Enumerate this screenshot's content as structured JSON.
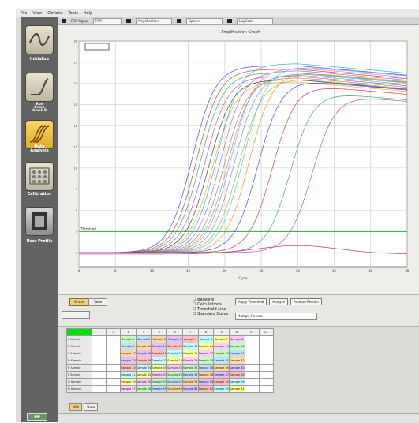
{
  "menu": [
    "File",
    "View",
    "Options",
    "Tools",
    "Help"
  ],
  "sidebar": {
    "items": [
      {
        "label": "Initialize"
      },
      {
        "label": "Run\nSetup\nGraph B"
      },
      {
        "label": "Data\nAnalysis"
      },
      {
        "label": "Calibration"
      },
      {
        "label": "User Profile"
      }
    ]
  },
  "topbar": {
    "fields": [
      "FCN Signal",
      "FAM",
      "Amplification",
      "Options",
      "Log Scale"
    ]
  },
  "plot": {
    "title": "Amplification Graph",
    "threshold_label": "Threshold"
  },
  "status": {
    "checkboxes": [
      "Baseline",
      "Calculations",
      "Threshold Line",
      "Standard Curve"
    ],
    "buttons": [
      "Apply Threshold",
      "Analyze",
      "Analyze Results"
    ],
    "tabs": [
      "Graph",
      "Table"
    ],
    "field": "Multiple Results"
  },
  "grid": {
    "headers": [
      "",
      "1",
      "2",
      "3",
      "4",
      "5",
      "6",
      "7",
      "8",
      "9",
      "10",
      "11",
      "12"
    ],
    "rows": [
      {
        "label": "A  Sample",
        "cells": [
          "",
          "",
          "Sample 1",
          "Sample 2",
          "Sample 3",
          "Sample 4",
          "Sample 5",
          "Sample 6",
          "Sample 7",
          "Sample 8",
          "",
          ""
        ]
      },
      {
        "label": "B  Sample",
        "cells": [
          "",
          "",
          "Sample 9",
          "Sample 10",
          "Sample 11",
          "Sample 12",
          "Sample 13",
          "Sample 14",
          "Sample 15",
          "Sample 16",
          "",
          ""
        ]
      },
      {
        "label": "C  Sample",
        "cells": [
          "",
          "",
          "Sample 17",
          "Sample 18",
          "Sample 19",
          "Sample 20",
          "Sample 21",
          "Sample 22",
          "Sample 23",
          "Sample 24",
          "",
          ""
        ]
      },
      {
        "label": "D  Sample",
        "cells": [
          "",
          "",
          "Sample 25",
          "Sample 26",
          "Sample 27",
          "Sample 28",
          "Sample 29",
          "Sample 30",
          "Sample 31",
          "Sample 32",
          "",
          ""
        ]
      },
      {
        "label": "E  Sample",
        "cells": [
          "",
          "",
          "Sample 33",
          "Sample 34",
          "Sample 35",
          "Sample 36",
          "Sample 37",
          "Sample 38",
          "Sample 39",
          "Sample 40",
          "",
          ""
        ]
      },
      {
        "label": "F  Sample",
        "cells": [
          "",
          "",
          "Sample 41",
          "Sample 42",
          "Sample 43",
          "Sample 44",
          "Sample 45",
          "Sample 46",
          "Sample 47",
          "Sample 48",
          "",
          ""
        ]
      },
      {
        "label": "G  Sample",
        "cells": [
          "",
          "",
          "Sample 49",
          "Sample 50",
          "Sample 51",
          "Sample 52",
          "Sample 53",
          "Sample 54",
          "Sample 55",
          "Sample 56",
          "",
          ""
        ]
      },
      {
        "label": "H  Sample",
        "cells": [
          "",
          "",
          "Sample 57",
          "Sample 58",
          "Sample 59",
          "Sample 60",
          "Sample 61",
          "Sample 62",
          "Sample 63",
          "Sample 64",
          "",
          ""
        ]
      }
    ],
    "bottom_tabs": [
      "Well",
      "Data"
    ]
  },
  "chart_data": {
    "type": "line",
    "xlim": [
      0,
      45
    ],
    "ylim": [
      -2,
      30
    ],
    "threshold": 3,
    "xlabel": "Cycle",
    "ylabel": "",
    "colors": [
      "#2a2aff",
      "#d02020",
      "#1aa04a",
      "#b23ab2",
      "#222222",
      "#e0a020",
      "#20a0c0",
      "#8060d0",
      "#c06040",
      "#40b080",
      "#ff60a0",
      "#6080ff",
      "#a0a020",
      "#30c0e0",
      "#ff8000"
    ],
    "series_ct": [
      12.5,
      13.1,
      13.6,
      14.2,
      14.8,
      15.3,
      15.9,
      16.4,
      16.9,
      17.4,
      17.8,
      18.3,
      18.9,
      19.5,
      20.3,
      21.5,
      23.5,
      26,
      29
    ],
    "plateau": [
      26.5,
      26,
      25.5,
      25,
      24.5,
      24.2,
      26.8,
      25.8,
      24.8,
      25.2,
      26.2,
      25.4,
      24.6,
      26.4,
      25.6,
      24.4,
      23.8,
      23,
      22.8
    ]
  }
}
